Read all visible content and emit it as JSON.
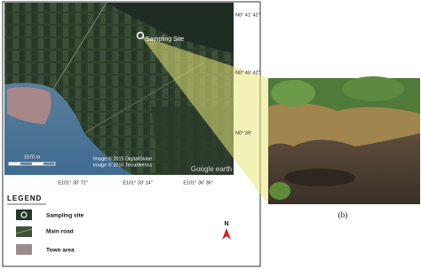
{
  "map": {
    "site_label": "Sampling Site",
    "lat_labels": [
      "N0° 41' 42\"",
      "N0° 40' 42\"",
      "N0° 39'"
    ],
    "lon_labels": [
      "E101° 30' 72\"",
      "E101° 33' 14\"",
      "E101° 36' 36\""
    ],
    "scale": "1570 m",
    "credits": [
      "Image © 2015 DigitalGlobe",
      "Image © 2015 TerraMetrics"
    ],
    "logo": "Google earth"
  },
  "legend": {
    "title": "LEGEND",
    "items": [
      "Sampling site",
      "Main road",
      "Town area"
    ],
    "north": "N"
  },
  "photo": {
    "caption": "(b)"
  }
}
